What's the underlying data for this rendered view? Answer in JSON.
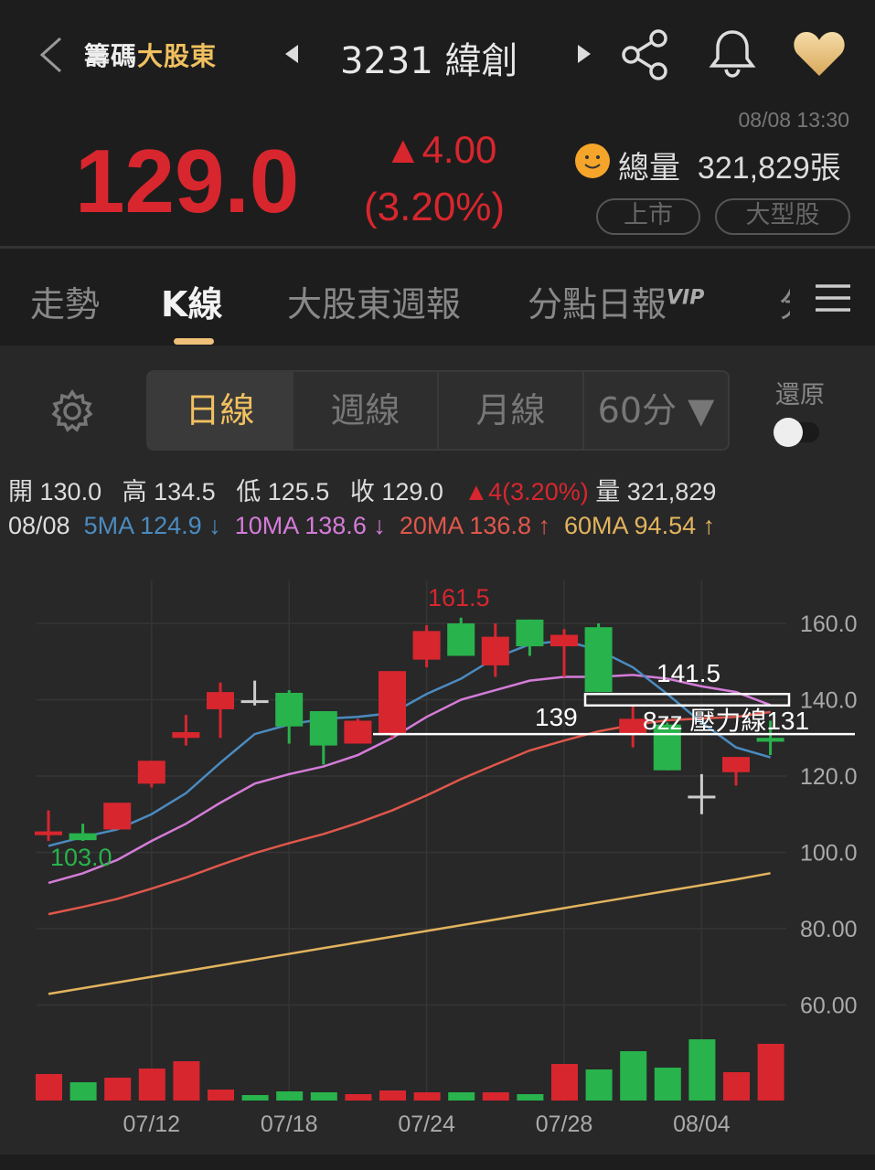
{
  "header": {
    "back_icon": "chevron-left-icon",
    "brand_prefix": "籌碼",
    "brand_suffix": "大股東",
    "stock_title": "3231 緯創",
    "prev_icon": "triangle-left-icon",
    "next_icon": "triangle-right-icon",
    "share_icon": "share-icon",
    "bell_icon": "bell-icon",
    "favorite_icon": "heart-icon"
  },
  "quote": {
    "price": "129.0",
    "change": "▲4.00",
    "change_pct": "(3.20%)",
    "time": "08/08 13:30",
    "volume_label": "總量",
    "volume": "321,829張",
    "tags": [
      "上市",
      "大型股"
    ],
    "up_color": "#d8262e"
  },
  "tabs": [
    {
      "label": "走勢"
    },
    {
      "label": "K線",
      "active": true
    },
    {
      "label": "大股東週報"
    },
    {
      "label": "分點日報",
      "badge": "VIP"
    },
    {
      "label": "分"
    }
  ],
  "menu_icon": "hamburger-icon",
  "controls": {
    "settings_icon": "gear-icon",
    "periods": [
      "日線",
      "週線",
      "月線",
      "60分 ▼"
    ],
    "active_period": "日線",
    "restore_label": "還原",
    "restore_on": false
  },
  "ohlc": {
    "open_label": "開",
    "open": "130.0",
    "high_label": "高",
    "high": "134.5",
    "low_label": "低",
    "low": "125.5",
    "close_label": "收",
    "close": "129.0",
    "change": "▲4(3.20%)",
    "vol_label": "量",
    "vol": "321,829"
  },
  "ma": {
    "date": "08/08",
    "ma5": "5MA 124.9 ↓",
    "ma10": "10MA 138.6 ↓",
    "ma20": "20MA 136.8 ↑",
    "ma60": "60MA 94.54 ↑",
    "colors": {
      "ma5": "#4b8bc0",
      "ma10": "#d47cd8",
      "ma20": "#e0574b",
      "ma60": "#e3b45e"
    }
  },
  "chart_data": {
    "type": "candlestick",
    "y_ticks": [
      "160.0",
      "140.0",
      "120.0",
      "100.0",
      "80.00",
      "60.00"
    ],
    "ylim": [
      55,
      170
    ],
    "x_tick_labels": [
      {
        "index": 3,
        "label": "07/12"
      },
      {
        "index": 7,
        "label": "07/18"
      },
      {
        "index": 11,
        "label": "07/24"
      },
      {
        "index": 15,
        "label": "07/28"
      },
      {
        "index": 19,
        "label": "08/04"
      }
    ],
    "candles": [
      [
        104.5,
        111,
        103,
        105.5
      ],
      [
        105,
        107.5,
        103,
        103.2
      ],
      [
        106,
        113,
        106,
        113
      ],
      [
        118,
        124,
        117,
        124
      ],
      [
        130,
        136,
        128,
        131.5
      ],
      [
        137.5,
        144.5,
        130,
        142
      ],
      [
        139.5,
        145,
        138.5,
        139.5
      ],
      [
        141.8,
        142.5,
        128.5,
        133
      ],
      [
        137,
        137,
        123,
        128
      ],
      [
        128.5,
        135,
        128.5,
        134.5
      ],
      [
        131,
        147.5,
        130,
        147.5
      ],
      [
        150.5,
        159.5,
        148.5,
        158
      ],
      [
        160,
        161.5,
        151.5,
        151.5
      ],
      [
        149,
        160,
        146,
        156.5
      ],
      [
        161,
        161,
        151.5,
        154
      ],
      [
        154,
        158.5,
        146,
        157
      ],
      [
        159,
        160,
        142,
        142
      ],
      [
        131,
        138.5,
        127.5,
        135
      ],
      [
        133.5,
        134,
        121.5,
        121.5
      ],
      [
        114.5,
        120.5,
        110,
        114.5
      ],
      [
        121,
        125,
        117.5,
        125
      ],
      [
        130,
        134.5,
        125.5,
        129
      ]
    ],
    "ma5": [
      101.7,
      104,
      106,
      110,
      115.5,
      123.5,
      131,
      133.5,
      135,
      135.5,
      136.5,
      141.5,
      145.5,
      151,
      154.5,
      155.5,
      153,
      148.5,
      141.5,
      134,
      127.5,
      124.9
    ],
    "ma10": [
      92,
      94.5,
      98,
      103,
      107.5,
      113,
      118,
      120.5,
      122.5,
      125.5,
      130,
      135.5,
      140,
      142.5,
      145,
      146,
      146,
      146.5,
      145.5,
      143.5,
      142,
      138.6
    ],
    "ma20": [
      83.8,
      85.7,
      87.8,
      90.5,
      93.4,
      96.7,
      99.8,
      102.4,
      104.8,
      107.7,
      111,
      114.9,
      119.2,
      123,
      126.7,
      129.3,
      131.7,
      133.4,
      134.6,
      135.1,
      135.5,
      136.8
    ],
    "ma60": [
      62.9,
      64.4,
      65.9,
      67.4,
      68.9,
      70.4,
      71.9,
      73.4,
      74.9,
      76.4,
      77.9,
      79.4,
      80.9,
      82.4,
      83.9,
      85.4,
      86.9,
      88.4,
      89.9,
      91.4,
      92.9,
      94.54
    ],
    "volume_relative": [
      29,
      20,
      25,
      35,
      43,
      12,
      6,
      10,
      9,
      7,
      11,
      9,
      9,
      9,
      7,
      40,
      34,
      54,
      36,
      67,
      31,
      62
    ],
    "volume_up": [
      true,
      false,
      true,
      true,
      true,
      true,
      false,
      false,
      false,
      true,
      true,
      true,
      false,
      true,
      false,
      true,
      false,
      false,
      false,
      false,
      true,
      true
    ],
    "high_label": "161.5",
    "low_label": "103.0",
    "annotations": {
      "line_price": 131,
      "line_label_left": "139",
      "box_top": 141.5,
      "box_bottom": 138.5,
      "box_label": "141.5",
      "line_label_right": "8zz 壓力線131"
    },
    "colors": {
      "up": "#d8262e",
      "down": "#28b34c",
      "flat": "#cccccc"
    }
  }
}
